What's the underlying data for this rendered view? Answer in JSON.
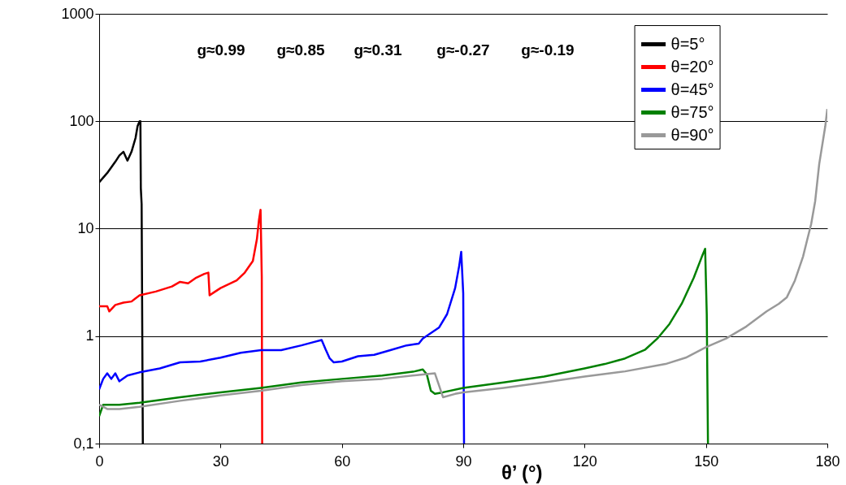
{
  "chart_data": {
    "type": "line",
    "xlabel": "θ’ (°)",
    "xlim": [
      0,
      180
    ],
    "xticks": [
      0,
      30,
      60,
      90,
      120,
      150,
      180
    ],
    "ylim": [
      0.1,
      1000
    ],
    "yticks": [
      {
        "value": 0.1,
        "label": "0,1"
      },
      1,
      10,
      100,
      1000
    ],
    "log": "y",
    "grid": "y",
    "legend": "top right",
    "marker": "none",
    "line_style": "solid",
    "annotations": [
      "g≈0.99",
      "g≈0.85",
      "g≈0.31",
      "g≈-0.27",
      "g≈-0.19"
    ],
    "series": [
      {
        "name": "θ=5°",
        "color": "#000000",
        "x": [
          0,
          2,
          4,
          5,
          6,
          7,
          8,
          9,
          9.5,
          10,
          10.2,
          10.3,
          10.5,
          10.8
        ],
        "values": [
          27,
          33,
          42,
          48,
          52,
          43,
          52,
          70,
          90,
          100,
          100,
          24,
          17,
          0.1
        ]
      },
      {
        "name": "θ=20°",
        "color": "#ff0000",
        "x": [
          0,
          2,
          2.5,
          4,
          6,
          8,
          9,
          10,
          14,
          18,
          20,
          22,
          24,
          26,
          27,
          27.3,
          28,
          30,
          34,
          36,
          38,
          39,
          39.5,
          39.9,
          40.2,
          40.3
        ],
        "values": [
          1.9,
          1.9,
          1.7,
          1.95,
          2.05,
          2.1,
          2.25,
          2.4,
          2.6,
          2.9,
          3.2,
          3.1,
          3.5,
          3.8,
          3.9,
          2.4,
          2.5,
          2.8,
          3.3,
          3.9,
          5,
          8,
          12,
          15,
          3.6,
          0.1
        ]
      },
      {
        "name": "θ=45°",
        "color": "#0000ff",
        "x": [
          0,
          1,
          2,
          3,
          4,
          5,
          7,
          10,
          15,
          20,
          25,
          30,
          35,
          40,
          45,
          50,
          53,
          55,
          56,
          57,
          58,
          60,
          64,
          68,
          72,
          76,
          79,
          80,
          84,
          86,
          88,
          89,
          89.5,
          90,
          90.2
        ],
        "values": [
          0.32,
          0.4,
          0.45,
          0.4,
          0.45,
          0.38,
          0.43,
          0.46,
          0.5,
          0.57,
          0.58,
          0.63,
          0.7,
          0.74,
          0.74,
          0.82,
          0.88,
          0.92,
          0.75,
          0.62,
          0.57,
          0.58,
          0.65,
          0.67,
          0.74,
          0.82,
          0.85,
          0.95,
          1.2,
          1.6,
          2.8,
          4.5,
          6.1,
          2.5,
          0.1
        ]
      },
      {
        "name": "θ=75°",
        "color": "#008000",
        "x": [
          0,
          1,
          5,
          10,
          20,
          30,
          40,
          50,
          60,
          70,
          78,
          80,
          81,
          82,
          83,
          85,
          90,
          100,
          110,
          120,
          125,
          130,
          135,
          138,
          141,
          144,
          147,
          149,
          149.8,
          150.2,
          150.5
        ],
        "values": [
          0.18,
          0.23,
          0.23,
          0.24,
          0.27,
          0.3,
          0.33,
          0.37,
          0.4,
          0.43,
          0.47,
          0.49,
          0.44,
          0.31,
          0.29,
          0.3,
          0.33,
          0.37,
          0.42,
          0.5,
          0.55,
          0.62,
          0.75,
          0.95,
          1.3,
          2,
          3.5,
          5.5,
          6.5,
          1.6,
          0.1
        ]
      },
      {
        "name": "θ=90°",
        "color": "#999999",
        "x": [
          0,
          2,
          5,
          10,
          20,
          30,
          40,
          50,
          60,
          70,
          80,
          83,
          84,
          85,
          88,
          90,
          100,
          110,
          120,
          130,
          140,
          145,
          150,
          155,
          160,
          165,
          168,
          170,
          172,
          174,
          175,
          176,
          177,
          178,
          179.5,
          180
        ],
        "values": [
          0.23,
          0.21,
          0.21,
          0.22,
          0.25,
          0.28,
          0.31,
          0.35,
          0.38,
          0.4,
          0.44,
          0.45,
          0.35,
          0.27,
          0.29,
          0.3,
          0.33,
          0.37,
          0.42,
          0.47,
          0.55,
          0.63,
          0.79,
          0.95,
          1.23,
          1.7,
          2.0,
          2.3,
          3.3,
          5.5,
          7.8,
          11,
          18,
          40,
          90,
          130
        ]
      }
    ]
  }
}
